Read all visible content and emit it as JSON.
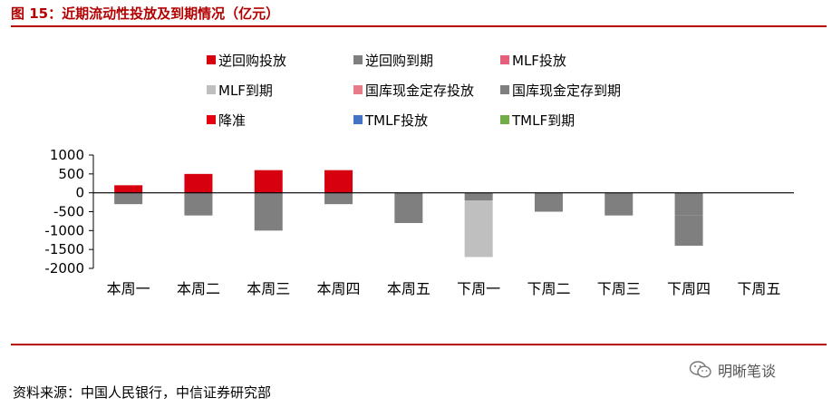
{
  "figure": {
    "title": "图 15：近期流动性投放及到期情况（亿元）",
    "source": "资料来源：中国人民银行，中信证券研究部",
    "watermark": "明晰笔谈",
    "watermark_icon": "wechat-icon",
    "rule_color": "#b30000"
  },
  "chart_data": {
    "type": "bar",
    "stacked": true,
    "categories": [
      "本周一",
      "本周二",
      "本周三",
      "本周四",
      "本周五",
      "下周一",
      "下周二",
      "下周三",
      "下周四",
      "下周五"
    ],
    "ylim": [
      -2000,
      1000
    ],
    "yticks": [
      1000,
      500,
      0,
      -500,
      -1000,
      -1500,
      -2000
    ],
    "grid": false,
    "legend_position": "top",
    "series": [
      {
        "name": "逆回购投放",
        "color": "#d7000f",
        "values": [
          200,
          500,
          600,
          600,
          0,
          0,
          0,
          0,
          0,
          0
        ]
      },
      {
        "name": "逆回购到期",
        "color": "#7f7f7f",
        "values": [
          -300,
          -600,
          -1000,
          -300,
          -800,
          -200,
          -500,
          -600,
          -600,
          0
        ]
      },
      {
        "name": "MLF投放",
        "color": "#e4607a",
        "values": [
          0,
          0,
          0,
          0,
          0,
          0,
          0,
          0,
          0,
          0
        ]
      },
      {
        "name": "MLF到期",
        "color": "#bfbfbf",
        "values": [
          0,
          0,
          0,
          0,
          0,
          -1500,
          0,
          0,
          0,
          0
        ]
      },
      {
        "name": "国库现金定存投放",
        "color": "#e77b88",
        "values": [
          0,
          0,
          0,
          0,
          0,
          0,
          0,
          0,
          0,
          0
        ]
      },
      {
        "name": "国库现金定存到期",
        "color": "#7f7f7f",
        "values": [
          0,
          0,
          0,
          0,
          0,
          0,
          0,
          0,
          -800,
          0
        ]
      },
      {
        "name": "降准",
        "color": "#e60012",
        "values": [
          0,
          0,
          0,
          0,
          0,
          0,
          0,
          0,
          0,
          0
        ]
      },
      {
        "name": "TMLF投放",
        "color": "#4472c4",
        "values": [
          0,
          0,
          0,
          0,
          0,
          0,
          0,
          0,
          0,
          0
        ]
      },
      {
        "name": "TMLF到期",
        "color": "#70ad47",
        "values": [
          0,
          0,
          0,
          0,
          0,
          0,
          0,
          0,
          0,
          0
        ]
      }
    ]
  }
}
